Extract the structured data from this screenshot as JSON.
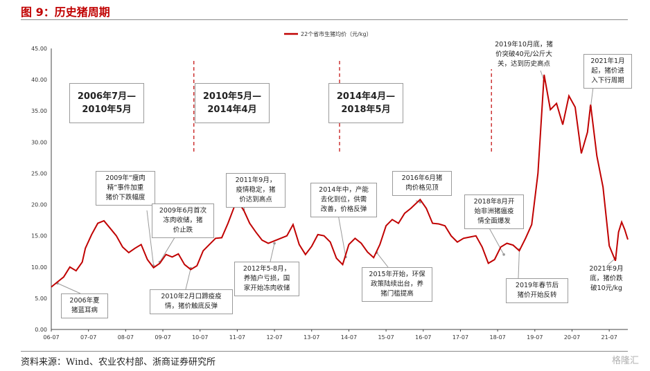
{
  "figure_title": "图 9：历史猪周期",
  "source": "资料来源：Wind、农业农村部、浙商证券研究所",
  "watermark": "格隆汇",
  "colors": {
    "line": "#c00000",
    "title": "#c00000",
    "dashed_dividers": "#c00000"
  },
  "chart_data": {
    "type": "line",
    "title": "",
    "xlabel": "",
    "ylabel": "",
    "ylim": [
      0,
      45
    ],
    "yticks": [
      "0.00",
      "5.00",
      "10.00",
      "15.00",
      "20.00",
      "25.00",
      "30.00",
      "35.00",
      "40.00",
      "45.00"
    ],
    "xticks": [
      "06-07",
      "07-07",
      "08-07",
      "09-07",
      "10-07",
      "11-07",
      "12-07",
      "13-07",
      "14-07",
      "15-07",
      "16-07",
      "17-07",
      "18-07",
      "19-07",
      "20-07",
      "21-07"
    ],
    "legend": {
      "position": "top-center",
      "entries": [
        "22个省市生猪均价（元/kg）"
      ]
    },
    "grid": false,
    "series": [
      {
        "name": "22个省市生猪均价（元/kg）",
        "x": [
          "2006-07",
          "2006-09",
          "2006-11",
          "2007-01",
          "2007-03",
          "2007-05",
          "2007-06",
          "2007-08",
          "2007-10",
          "2007-12",
          "2008-02",
          "2008-04",
          "2008-06",
          "2008-08",
          "2008-10",
          "2008-12",
          "2009-02",
          "2009-04",
          "2009-06",
          "2009-08",
          "2009-10",
          "2009-12",
          "2010-02",
          "2010-04",
          "2010-06",
          "2010-08",
          "2010-10",
          "2010-12",
          "2011-02",
          "2011-04",
          "2011-06",
          "2011-08",
          "2011-09",
          "2011-11",
          "2012-01",
          "2012-03",
          "2012-05",
          "2012-07",
          "2012-09",
          "2012-11",
          "2013-01",
          "2013-03",
          "2013-05",
          "2013-07",
          "2013-09",
          "2013-11",
          "2014-01",
          "2014-03",
          "2014-05",
          "2014-07",
          "2014-09",
          "2014-11",
          "2015-01",
          "2015-03",
          "2015-05",
          "2015-07",
          "2015-09",
          "2015-11",
          "2016-01",
          "2016-03",
          "2016-06",
          "2016-08",
          "2016-10",
          "2016-12",
          "2017-02",
          "2017-04",
          "2017-06",
          "2017-08",
          "2017-10",
          "2017-12",
          "2018-02",
          "2018-04",
          "2018-06",
          "2018-08",
          "2018-10",
          "2018-12",
          "2019-02",
          "2019-04",
          "2019-06",
          "2019-08",
          "2019-10",
          "2019-12",
          "2020-02",
          "2020-04",
          "2020-06",
          "2020-08",
          "2020-10",
          "2020-12",
          "2021-01",
          "2021-03",
          "2021-05",
          "2021-07",
          "2021-09",
          "2021-10",
          "2021-11",
          "2021-12",
          "2022-01"
        ],
        "y": [
          6.8,
          7.6,
          8.4,
          10.0,
          9.4,
          10.8,
          13.0,
          15.2,
          17.0,
          17.4,
          16.2,
          15.0,
          13.2,
          12.3,
          13.0,
          13.6,
          11.2,
          9.9,
          10.6,
          12.0,
          11.6,
          12.1,
          10.4,
          9.6,
          10.2,
          12.6,
          13.6,
          14.6,
          14.7,
          17.0,
          19.6,
          19.8,
          19.2,
          17.0,
          15.6,
          14.3,
          13.8,
          14.2,
          14.6,
          15.0,
          16.8,
          13.6,
          12.0,
          13.3,
          15.2,
          15.0,
          14.0,
          11.4,
          10.4,
          13.6,
          14.6,
          13.8,
          12.4,
          11.5,
          13.6,
          16.6,
          17.6,
          17.0,
          18.6,
          19.4,
          20.8,
          19.4,
          17.0,
          16.9,
          16.6,
          15.0,
          14.0,
          14.6,
          14.8,
          15.0,
          13.2,
          10.6,
          11.2,
          13.2,
          13.8,
          13.5,
          12.6,
          14.6,
          16.8,
          25.0,
          40.8,
          35.2,
          36.2,
          32.8,
          37.4,
          35.6,
          28.2,
          31.6,
          36.0,
          27.8,
          22.8,
          13.4,
          11.0,
          15.6,
          17.2,
          16.0,
          14.4
        ]
      }
    ],
    "period_markers": [
      "2006-07",
      "2010-05",
      "2014-04",
      "2018-05"
    ]
  },
  "periods": [
    {
      "label": "2006年7月—\n2010年5月"
    },
    {
      "label": "2010年5月—\n2014年4月"
    },
    {
      "label": "2014年4月—\n2018年5月"
    }
  ],
  "annotations": [
    {
      "text": "2006年夏\n猪蓝耳病"
    },
    {
      "text": "2009年“瘦肉\n精”事件加重\n猪价下跌幅度"
    },
    {
      "text": "2009年6月首次\n冻肉收储，猪\n价止跌"
    },
    {
      "text": "2010年2月口蹄疫疫\n情，猪价触底反弹"
    },
    {
      "text": "2011年9月，\n疫情稳定，猪\n价达到高点"
    },
    {
      "text": "2012年5-8月，\n养殖户亏损，国\n家开始冻肉收储"
    },
    {
      "text": "2014年中，产能\n去化到位，供需\n改善，价格反弹"
    },
    {
      "text": "2015年开始，环保\n政策陆续出台，养\n猪门槛提高"
    },
    {
      "text": "2016年6月猪\n肉价格见顶"
    },
    {
      "text": "2018年8月开\n始非洲猪瘟疫\n情全面爆发"
    },
    {
      "text": "2019年春节后\n猪价开始反转"
    },
    {
      "text": "2019年10月底，猪\n价突破40元/公斤大\n关，达到历史高点"
    },
    {
      "text": "2021年1月\n起，猪价进\n入下行周期"
    },
    {
      "text": "2021年9月\n底，猪价跌\n破10元/kg"
    }
  ]
}
